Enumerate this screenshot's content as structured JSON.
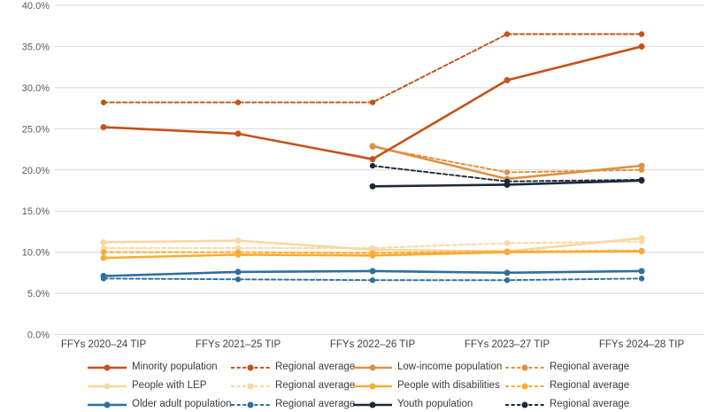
{
  "chart_data": {
    "type": "line",
    "title": "",
    "categories": [
      "FFYs 2020–24 TIP",
      "FFYs 2021–25 TIP",
      "FFYs 2022–26 TIP",
      "FFYs 2023–27 TIP",
      "FFYs 2024–28 TIP"
    ],
    "y_axis": {
      "min": 0,
      "max": 40,
      "step": 5,
      "tick_labels": [
        "0.0%",
        "5.0%",
        "10.0%",
        "15.0%",
        "20.0%",
        "25.0%",
        "30.0%",
        "35.0%",
        "40.0%"
      ],
      "grid": true,
      "grid_color": "#d9d9d9",
      "tick_color": "#595959"
    },
    "x_axis": {
      "label_color": "#404040"
    },
    "legend_position": "bottom",
    "series": [
      {
        "name": "Minority population",
        "style": "solid",
        "color": "#C5521A",
        "values": [
          25.2,
          24.4,
          21.3,
          30.9,
          35.0
        ]
      },
      {
        "name": "Regional average",
        "style": "dashed",
        "color": "#C5521A",
        "values": [
          28.2,
          28.2,
          28.2,
          36.5,
          36.5
        ]
      },
      {
        "name": "Low-income population",
        "style": "solid",
        "color": "#DE9144",
        "values": [
          null,
          null,
          22.9,
          18.9,
          20.5
        ]
      },
      {
        "name": "Regional average",
        "style": "dashed",
        "color": "#DE9144",
        "values": [
          null,
          null,
          22.8,
          19.7,
          20.0
        ]
      },
      {
        "name": "People with LEP",
        "style": "solid",
        "color": "#FAD7A2",
        "values": [
          11.2,
          11.4,
          10.3,
          10.1,
          11.7
        ]
      },
      {
        "name": "Regional average",
        "style": "dashed",
        "color": "#FAD7A2",
        "values": [
          10.5,
          10.5,
          10.5,
          11.1,
          11.3
        ]
      },
      {
        "name": "People with disabilities",
        "style": "solid",
        "color": "#F9AC33",
        "values": [
          9.3,
          9.7,
          9.6,
          10.0,
          10.1
        ]
      },
      {
        "name": "Regional average",
        "style": "dashed",
        "color": "#F9AC33",
        "values": [
          10.0,
          10.0,
          9.9,
          10.1,
          10.2
        ]
      },
      {
        "name": "Older adult population",
        "style": "solid",
        "color": "#2E6F9E",
        "values": [
          7.1,
          7.6,
          7.7,
          7.5,
          7.7
        ]
      },
      {
        "name": "Regional average",
        "style": "dashed",
        "color": "#2E6F9E",
        "values": [
          6.8,
          6.7,
          6.6,
          6.6,
          6.8
        ]
      },
      {
        "name": "Youth population",
        "style": "solid",
        "color": "#1B2A3B",
        "values": [
          null,
          null,
          18.0,
          18.2,
          18.7
        ]
      },
      {
        "name": "Regional average",
        "style": "dashed",
        "color": "#1B2A3B",
        "values": [
          null,
          null,
          20.5,
          18.6,
          18.8
        ]
      }
    ],
    "render_order": [
      4,
      5,
      6,
      7,
      8,
      9,
      2,
      3,
      10,
      11,
      0,
      1
    ],
    "legend_grid": [
      [
        0,
        1,
        2,
        3
      ],
      [
        4,
        5,
        6,
        7
      ],
      [
        8,
        9,
        10,
        11
      ]
    ]
  }
}
